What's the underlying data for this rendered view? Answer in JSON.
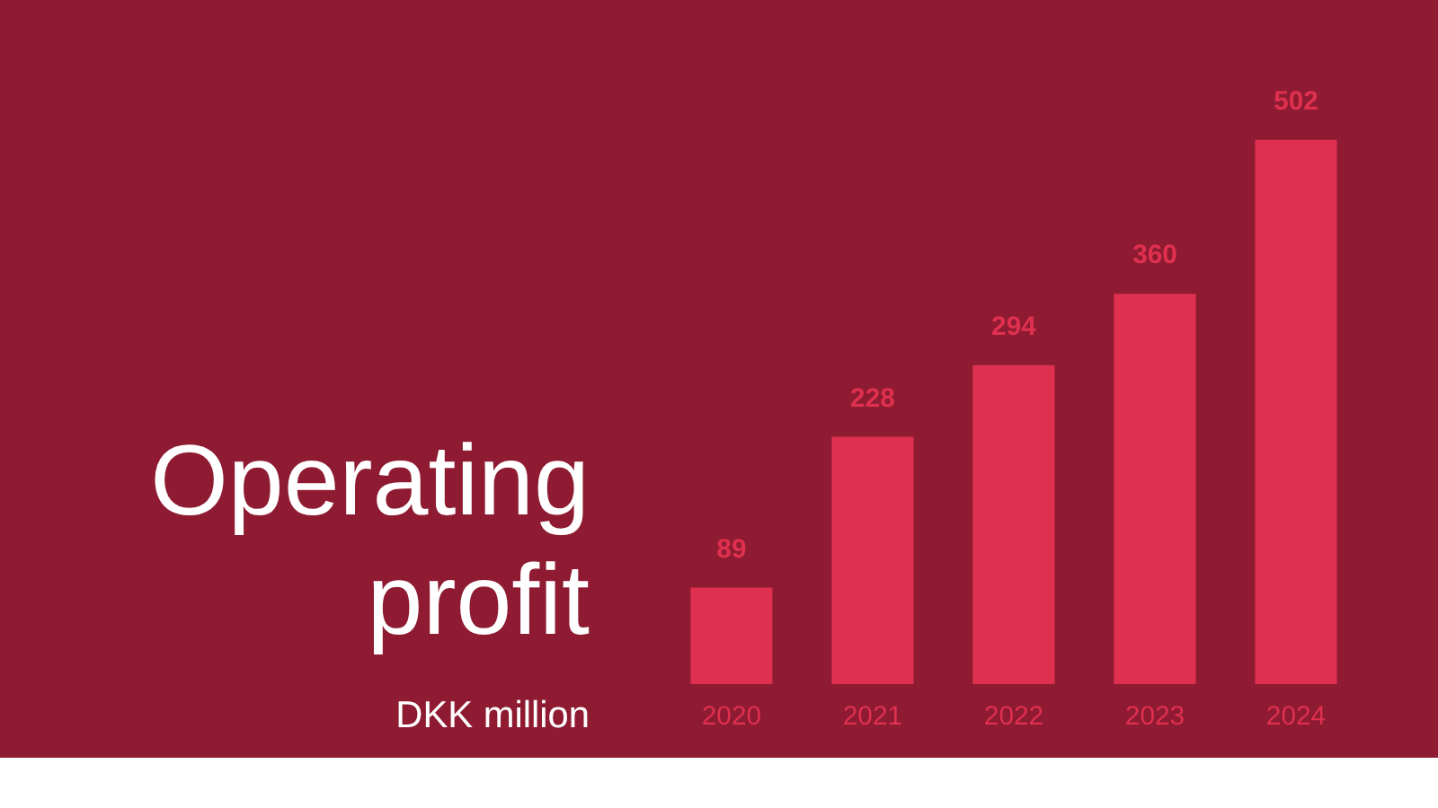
{
  "chart_data": {
    "type": "bar",
    "title": "Operating profit",
    "subtitle": "DKK million",
    "categories": [
      "2020",
      "2021",
      "2022",
      "2023",
      "2024"
    ],
    "values": [
      89,
      228,
      294,
      360,
      502
    ],
    "color": "#e0304f",
    "data_labels": true,
    "grid": false
  }
}
